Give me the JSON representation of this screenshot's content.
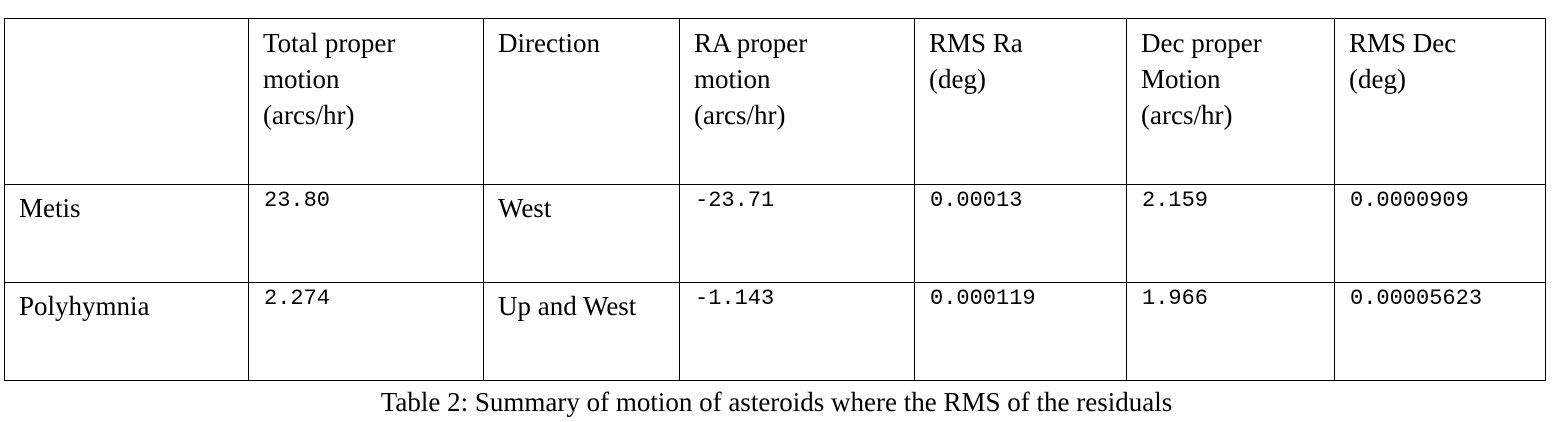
{
  "table": {
    "headers": [
      "",
      "Total proper\nmotion\n(arcs/hr)",
      "Direction",
      "RA proper\nmotion\n(arcs/hr)",
      "RMS Ra\n(deg)",
      "Dec proper\nMotion\n(arcs/hr)",
      "RMS Dec\n(deg)"
    ],
    "rows": [
      {
        "name": "Metis",
        "total_motion": "23.80",
        "direction": "West",
        "ra_motion": "-23.71",
        "rms_ra": "0.00013",
        "dec_motion": "2.159",
        "rms_dec": "0.0000909"
      },
      {
        "name": "Polyhymnia",
        "total_motion": "2.274",
        "direction": "Up and West",
        "ra_motion": "-1.143",
        "rms_ra": "0.000119",
        "dec_motion": "1.966",
        "rms_dec": "0.00005623"
      }
    ]
  },
  "caption": "Table 2: Summary of motion of asteroids where the RMS of the residuals"
}
